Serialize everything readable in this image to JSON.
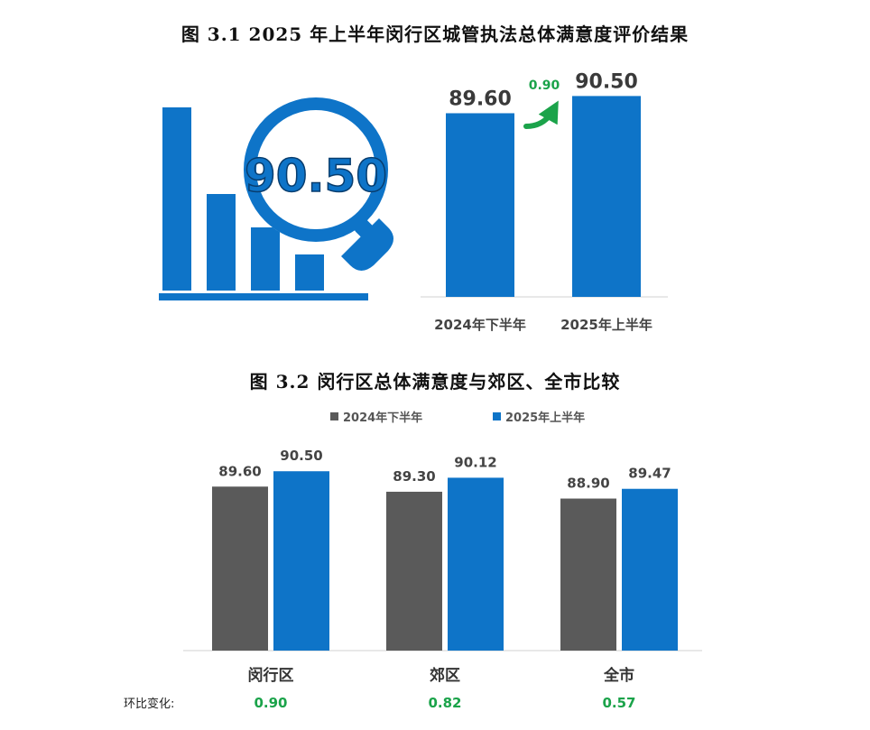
{
  "figure1": {
    "title": "图 3.1   2025 年上半年闵行区城管执法总体满意度评价结果",
    "icon_value": "90.50",
    "change_label": "0.90",
    "colors": {
      "blue": "#0E74C8",
      "green": "#1BA34A",
      "dark": "#3a3a3a"
    }
  },
  "figure2": {
    "title": "图 3.2   闵行区总体满意度与郊区、全市比较",
    "change_prefix": "环比变化:",
    "changes": [
      "0.90",
      "0.82",
      "0.57"
    ],
    "colors": {
      "gray": "#5A5A5A",
      "blue": "#0E74C8",
      "green": "#1BA34A"
    }
  },
  "chart_data": [
    {
      "type": "bar",
      "categories": [
        "2024年下半年",
        "2025年上半年"
      ],
      "values": [
        89.6,
        90.5
      ],
      "value_labels": [
        "89.60",
        "90.50"
      ],
      "annotations": [
        "0.90"
      ]
    },
    {
      "type": "bar",
      "categories": [
        "闵行区",
        "郊区",
        "全市"
      ],
      "series": [
        {
          "name": "2024年下半年",
          "values": [
            89.6,
            89.3,
            88.9
          ],
          "labels": [
            "89.60",
            "89.30",
            "88.90"
          ]
        },
        {
          "name": "2025年上半年",
          "values": [
            90.5,
            90.12,
            89.47
          ],
          "labels": [
            "90.50",
            "90.12",
            "89.47"
          ]
        }
      ],
      "legend_position": "top"
    }
  ]
}
